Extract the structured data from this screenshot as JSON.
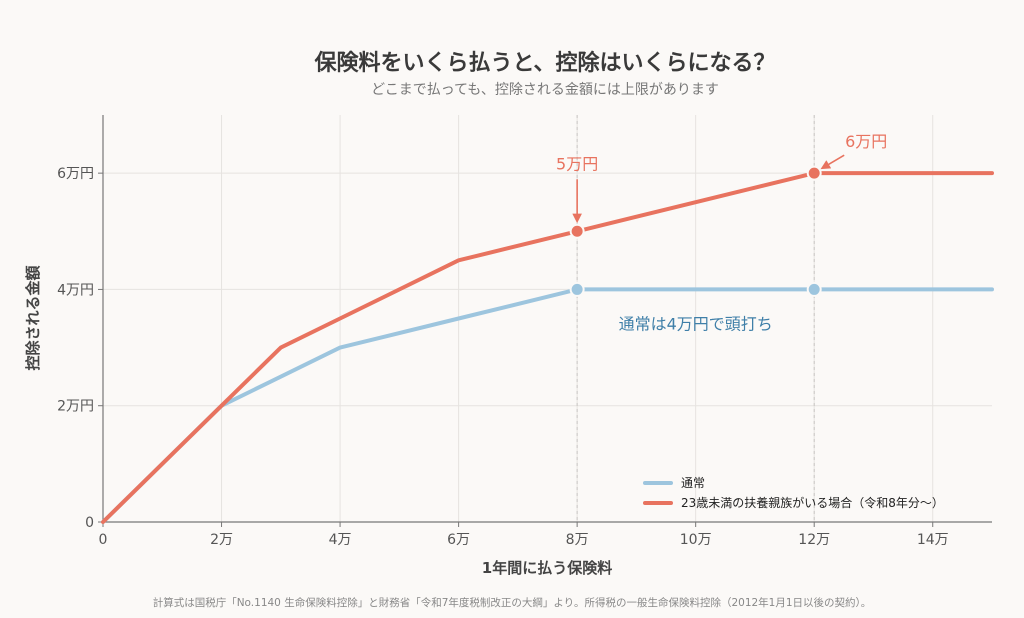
{
  "chart_data": {
    "type": "line",
    "title": "保険料をいくら払うと、控除はいくらになる？",
    "subtitle": "どこまで払っても、控除される金額には上限があります",
    "xlabel": "1年間に払う保険料",
    "ylabel": "控除される金額",
    "xlim": [
      0,
      15
    ],
    "ylim": [
      0,
      7
    ],
    "x_ticks": [
      0,
      2,
      4,
      6,
      8,
      10,
      12,
      14
    ],
    "x_tick_labels": [
      "0",
      "2万",
      "4万",
      "6万",
      "8万",
      "10万",
      "12万",
      "14万"
    ],
    "y_ticks": [
      0,
      2,
      4,
      6
    ],
    "y_tick_labels": [
      "0",
      "2万円",
      "4万円",
      "6万円"
    ],
    "grid": true,
    "legend_position": "bottom-right",
    "series": [
      {
        "name": "通常",
        "color": "#9dc5de",
        "x": [
          0,
          2,
          4,
          6,
          8,
          12,
          15
        ],
        "y": [
          0,
          2,
          3,
          3.5,
          4,
          4,
          4
        ],
        "markers_at": [
          8,
          12
        ]
      },
      {
        "name": "23歳未満の扶養親族がいる場合（令和8年分〜）",
        "color": "#e8735f",
        "x": [
          0,
          2,
          3,
          4,
          6,
          8,
          12,
          15
        ],
        "y": [
          0,
          2,
          3,
          3.5,
          4.5,
          5,
          6,
          6
        ],
        "markers_at": [
          8,
          12
        ]
      }
    ],
    "reference_lines_x": [
      8,
      12
    ],
    "annotations": [
      {
        "text": "5万円",
        "x": 8,
        "y": 5,
        "color": "#e8735f"
      },
      {
        "text": "6万円",
        "x": 12,
        "y": 6,
        "color": "#e8735f"
      },
      {
        "text": "通常は4万円で頭打ち",
        "x": 10,
        "y": 3.4,
        "color": "#3f7fa8"
      }
    ]
  },
  "footnote": "計算式は国税庁「No.1140 生命保険料控除」と財務省「令和7年度税制改正の大綱」より。所得税の一般生命保険料控除（2012年1月1日以後の契約）。"
}
